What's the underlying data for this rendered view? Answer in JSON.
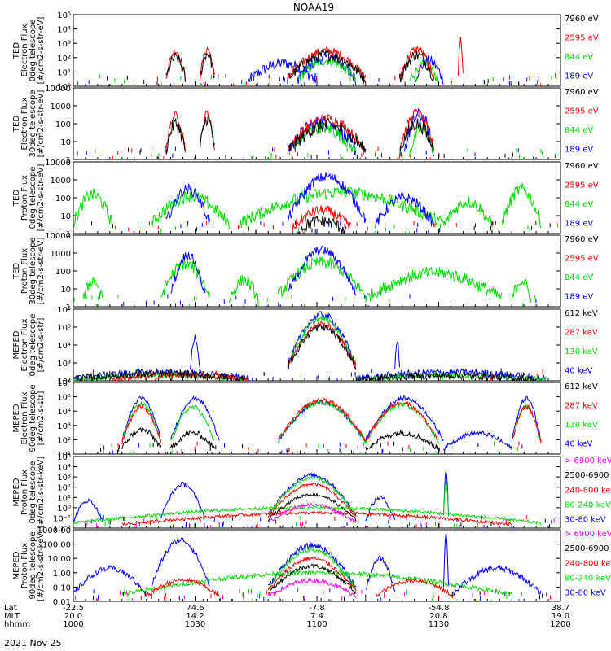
{
  "title": "NOAA19",
  "date_label": "2021 Nov 25",
  "footer": {
    "row_labels": [
      "Lat",
      "MLT",
      "hhmm"
    ],
    "columns": [
      {
        "lat": "-22.5",
        "mlt": "20.0",
        "hhmm": "1000"
      },
      {
        "lat": "74.6",
        "mlt": "14.2",
        "hhmm": "1030"
      },
      {
        "lat": "-7.8",
        "mlt": "7.4",
        "hhmm": "1100"
      },
      {
        "lat": "-54.8",
        "mlt": "20.8",
        "hhmm": "1130"
      },
      {
        "lat": "38.7",
        "mlt": "19.0",
        "hhmm": "1200"
      }
    ]
  },
  "colors": {
    "black": "#000000",
    "red": "#ff0000",
    "green": "#00dd00",
    "blue": "#0000ff",
    "magenta": "#ff00ff"
  },
  "chart_data": [
    {
      "type": "line",
      "ylabel": [
        "TED",
        "Electron Flux",
        "0deg telescope",
        "[#/cm2-s-str-eV]"
      ],
      "ylog": true,
      "ylim": [
        1,
        100000
      ],
      "yticks": [
        "10⁰",
        "10¹",
        "10²",
        "10³",
        "10⁴",
        "10⁵"
      ],
      "legend": [
        {
          "label": "7960 eV",
          "color": "black"
        },
        {
          "label": "2595 eV",
          "color": "red"
        },
        {
          "label": "844 eV",
          "color": "green"
        },
        {
          "label": "189 eV",
          "color": "blue"
        }
      ],
      "series": [
        {
          "color": "blue",
          "segs": [
            [
              0.36,
              0.5,
              40
            ],
            [
              0.46,
              0.58,
              90
            ],
            [
              0.7,
              0.76,
              60
            ]
          ],
          "noise": 0.8,
          "sparse": "blue"
        },
        {
          "color": "green",
          "segs": [
            [
              0.46,
              0.58,
              60
            ],
            [
              0.69,
              0.75,
              30
            ]
          ],
          "noise": 0.7
        },
        {
          "color": "red",
          "segs": [
            [
              0.19,
              0.23,
              300
            ],
            [
              0.26,
              0.29,
              400
            ],
            [
              0.44,
              0.6,
              300
            ],
            [
              0.67,
              0.74,
              400
            ],
            [
              0.79,
              0.8,
              2000
            ]
          ],
          "noise": 0.6
        },
        {
          "color": "black",
          "segs": [
            [
              0.19,
              0.23,
              100
            ],
            [
              0.26,
              0.29,
              200
            ],
            [
              0.44,
              0.6,
              150
            ],
            [
              0.67,
              0.74,
              150
            ]
          ],
          "noise": 0.8
        }
      ]
    },
    {
      "type": "line",
      "ylabel": [
        "TED",
        "Electron Flux",
        "30deg telescope",
        "[#/cm2-s-str-eV]"
      ],
      "ylog": true,
      "ylim": [
        1,
        10000
      ],
      "yticks": [
        "1",
        "10",
        "100",
        "1000",
        "10000"
      ],
      "legend": [
        {
          "label": "7960 eV",
          "color": "black"
        },
        {
          "label": "2595 eV",
          "color": "red"
        },
        {
          "label": "844 eV",
          "color": "green"
        },
        {
          "label": "189 eV",
          "color": "blue"
        }
      ],
      "series": [
        {
          "color": "blue",
          "segs": [
            [
              0.44,
              0.58,
              120
            ],
            [
              0.68,
              0.74,
              300
            ]
          ],
          "noise": 0.8
        },
        {
          "color": "green",
          "segs": [
            [
              0.44,
              0.58,
              60
            ],
            [
              0.69,
              0.74,
              50
            ]
          ],
          "noise": 0.7
        },
        {
          "color": "red",
          "segs": [
            [
              0.19,
              0.23,
              300
            ],
            [
              0.26,
              0.29,
              400
            ],
            [
              0.44,
              0.6,
              200
            ],
            [
              0.67,
              0.74,
              400
            ]
          ],
          "noise": 0.5
        },
        {
          "color": "black",
          "segs": [
            [
              0.19,
              0.23,
              100
            ],
            [
              0.26,
              0.29,
              200
            ],
            [
              0.44,
              0.6,
              80
            ],
            [
              0.67,
              0.74,
              100
            ]
          ],
          "noise": 0.8
        }
      ]
    },
    {
      "type": "line",
      "ylabel": [
        "TED",
        "Proton Flux",
        "0deg telescope",
        "[#/cm2-s-str-eV]"
      ],
      "ylog": true,
      "ylim": [
        1,
        10000
      ],
      "yticks": [
        "1",
        "10",
        "100",
        "1000",
        "10000"
      ],
      "legend": [
        {
          "label": "7960 eV",
          "color": "black"
        },
        {
          "label": "2595 eV",
          "color": "red"
        },
        {
          "label": "844 eV",
          "color": "green"
        },
        {
          "label": "189 eV",
          "color": "blue"
        }
      ],
      "series": [
        {
          "color": "green",
          "segs": [
            [
              0.0,
              0.08,
              150
            ],
            [
              0.16,
              0.32,
              120
            ],
            [
              0.34,
              0.76,
              200
            ],
            [
              0.76,
              0.86,
              60
            ],
            [
              0.88,
              0.96,
              300
            ]
          ],
          "noise": 0.7
        },
        {
          "color": "blue",
          "segs": [
            [
              0.19,
              0.28,
              300
            ],
            [
              0.44,
              0.6,
              1500
            ],
            [
              0.62,
              0.74,
              100
            ]
          ],
          "noise": 0.6
        },
        {
          "color": "red",
          "segs": [
            [
              0.45,
              0.57,
              20
            ]
          ],
          "noise": 0.6
        },
        {
          "color": "black",
          "segs": [
            [
              0.46,
              0.56,
              5
            ]
          ],
          "noise": 0.7
        }
      ]
    },
    {
      "type": "line",
      "ylabel": [
        "TED",
        "Proton Flux",
        "30deg telescope",
        "[#/cm2-s-str-eV]"
      ],
      "ylog": true,
      "ylim": [
        1,
        10000
      ],
      "yticks": [
        "1",
        "10",
        "100",
        "1000",
        "10000"
      ],
      "legend": [
        {
          "label": "7960 eV",
          "color": "black"
        },
        {
          "label": "2595 eV",
          "color": "red"
        },
        {
          "label": "844 eV",
          "color": "green"
        },
        {
          "label": "189 eV",
          "color": "blue"
        }
      ],
      "series": [
        {
          "color": "green",
          "segs": [
            [
              0.02,
              0.06,
              30
            ],
            [
              0.18,
              0.28,
              250
            ],
            [
              0.32,
              0.38,
              30
            ],
            [
              0.42,
              0.6,
              300
            ],
            [
              0.6,
              0.88,
              80
            ],
            [
              0.9,
              0.94,
              30
            ]
          ],
          "noise": 0.7
        },
        {
          "color": "blue",
          "segs": [
            [
              0.2,
              0.27,
              800
            ],
            [
              0.44,
              0.58,
              1500
            ]
          ],
          "noise": 0.5
        }
      ]
    },
    {
      "type": "line",
      "ylabel": [
        "MEPED",
        "Electron Flux",
        "0deg telescope",
        "[#/cm2-s-str]"
      ],
      "ylog": true,
      "ylim": [
        100,
        1000000
      ],
      "yticks": [
        "10²",
        "10³",
        "10⁴",
        "10⁵",
        "10⁶"
      ],
      "legend": [
        {
          "label": "612 keV",
          "color": "black"
        },
        {
          "label": "287 keV",
          "color": "red"
        },
        {
          "label": "130 keV",
          "color": "green"
        },
        {
          "label": "40 keV",
          "color": "blue"
        }
      ],
      "series": [
        {
          "color": "blue",
          "segs": [
            [
              0.0,
              0.36,
              300
            ],
            [
              0.24,
              0.26,
              30000
            ],
            [
              0.44,
              0.58,
              500000
            ],
            [
              0.58,
              0.97,
              300
            ],
            [
              0.66,
              0.67,
              20000
            ]
          ],
          "noise": 0.4
        },
        {
          "color": "green",
          "segs": [
            [
              0.0,
              0.36,
              200
            ],
            [
              0.44,
              0.58,
              300000
            ],
            [
              0.58,
              0.97,
              200
            ]
          ],
          "noise": 0.3
        },
        {
          "color": "red",
          "segs": [
            [
              0.44,
              0.58,
              150000
            ],
            [
              0.08,
              0.36,
              200
            ]
          ],
          "noise": 0.3
        },
        {
          "color": "black",
          "segs": [
            [
              0.44,
              0.58,
              100000
            ],
            [
              0.0,
              0.36,
              250
            ],
            [
              0.58,
              0.95,
              200
            ]
          ],
          "noise": 0.4
        }
      ]
    },
    {
      "type": "line",
      "ylabel": [
        "MEPED",
        "Electron Flux",
        "90deg telescope",
        "[#/cm2-s-str]"
      ],
      "ylog": true,
      "ylim": [
        10,
        1000000
      ],
      "yticks": [
        "10¹",
        "10²",
        "10³",
        "10⁴",
        "10⁵",
        "10⁶"
      ],
      "legend": [
        {
          "label": "612 keV",
          "color": "black"
        },
        {
          "label": "287 keV",
          "color": "red"
        },
        {
          "label": "130 keV",
          "color": "green"
        },
        {
          "label": "40 keV",
          "color": "blue"
        }
      ],
      "series": [
        {
          "color": "blue",
          "segs": [
            [
              0.1,
              0.18,
              80000
            ],
            [
              0.2,
              0.3,
              80000
            ],
            [
              0.42,
              0.6,
              40000
            ],
            [
              0.6,
              0.76,
              80000
            ],
            [
              0.76,
              0.9,
              300
            ],
            [
              0.9,
              0.96,
              80000
            ]
          ],
          "noise": 0.3
        },
        {
          "color": "green",
          "segs": [
            [
              0.1,
              0.18,
              30000
            ],
            [
              0.2,
              0.29,
              20000
            ],
            [
              0.42,
              0.6,
              40000
            ],
            [
              0.6,
              0.75,
              30000
            ],
            [
              0.9,
              0.96,
              20000
            ]
          ],
          "noise": 0.3
        },
        {
          "color": "red",
          "segs": [
            [
              0.1,
              0.18,
              20000
            ],
            [
              0.42,
              0.6,
              60000
            ],
            [
              0.6,
              0.75,
              40000
            ],
            [
              0.9,
              0.96,
              20000
            ]
          ],
          "noise": 0.3
        },
        {
          "color": "black",
          "segs": [
            [
              0.1,
              0.18,
              500
            ],
            [
              0.2,
              0.29,
              300
            ],
            [
              0.6,
              0.75,
              300
            ]
          ],
          "noise": 0.4
        }
      ]
    },
    {
      "type": "line",
      "ylabel": [
        "MEPED",
        "Proton Flux",
        "0deg telescope",
        "[#/cm2-s-str-keV]"
      ],
      "ylog": true,
      "ylim": [
        0.01,
        100000
      ],
      "yticks": [
        "10⁻²",
        "10⁻¹",
        "10⁰",
        "10¹",
        "10²",
        "10³",
        "10⁴",
        "10⁵"
      ],
      "legend": [
        {
          "label": "> 6900 keV",
          "color": "magenta"
        },
        {
          "label": "2500-6900",
          "color": "black"
        },
        {
          "label": "240-800 keV",
          "color": "red"
        },
        {
          "label": "80-240 keV",
          "color": "green"
        },
        {
          "label": "30-80 keV",
          "color": "blue"
        }
      ],
      "series": [
        {
          "color": "blue",
          "segs": [
            [
              0.0,
              0.06,
              5
            ],
            [
              0.18,
              0.27,
              200
            ],
            [
              0.4,
              0.58,
              1500
            ],
            [
              0.6,
              0.66,
              10
            ],
            [
              0.76,
              0.77,
              5000
            ]
          ],
          "noise": 0.4
        },
        {
          "color": "green",
          "segs": [
            [
              0.0,
              0.96,
              1
            ],
            [
              0.4,
              0.58,
              800
            ],
            [
              0.76,
              0.77,
              500
            ]
          ],
          "noise": 0.3
        },
        {
          "color": "red",
          "segs": [
            [
              0.4,
              0.58,
              200
            ],
            [
              0.1,
              0.9,
              0.3
            ]
          ],
          "noise": 0.3
        },
        {
          "color": "black",
          "segs": [
            [
              0.4,
              0.58,
              20
            ]
          ],
          "noise": 0.3
        },
        {
          "color": "magenta",
          "segs": [
            [
              0.4,
              0.58,
              2
            ]
          ],
          "noise": 0.3
        }
      ]
    },
    {
      "type": "line",
      "ylabel": [
        "MEPED",
        "Proton Flux",
        "90deg telescope",
        "[#/cm2-s-str-keV]"
      ],
      "ylog": true,
      "ylim": [
        0.01,
        1000
      ],
      "yticks": [
        "0.01",
        "0.10",
        "1.00",
        "10.00",
        "100.00",
        "1000.00"
      ],
      "legend": [
        {
          "label": "> 6900 keV",
          "color": "magenta"
        },
        {
          "label": "2500-6900",
          "color": "black"
        },
        {
          "label": "240-800 keV",
          "color": "red"
        },
        {
          "label": "80-240 keV",
          "color": "green"
        },
        {
          "label": "30-80 keV",
          "color": "blue"
        }
      ],
      "series": [
        {
          "color": "blue",
          "segs": [
            [
              0.0,
              0.15,
              2
            ],
            [
              0.16,
              0.28,
              200
            ],
            [
              0.4,
              0.58,
              80
            ],
            [
              0.6,
              0.66,
              10
            ],
            [
              0.76,
              0.77,
              500
            ],
            [
              0.78,
              0.96,
              2
            ]
          ],
          "noise": 0.4
        },
        {
          "color": "green",
          "segs": [
            [
              0.1,
              0.9,
              1
            ],
            [
              0.4,
              0.58,
              40
            ]
          ],
          "noise": 0.3
        },
        {
          "color": "red",
          "segs": [
            [
              0.4,
              0.58,
              10
            ],
            [
              0.15,
              0.3,
              0.3
            ],
            [
              0.62,
              0.78,
              0.3
            ]
          ],
          "noise": 0.3
        },
        {
          "color": "black",
          "segs": [
            [
              0.4,
              0.58,
              3
            ]
          ],
          "noise": 0.3
        },
        {
          "color": "magenta",
          "segs": [
            [
              0.4,
              0.58,
              0.3
            ]
          ],
          "noise": 0.3
        }
      ]
    }
  ]
}
